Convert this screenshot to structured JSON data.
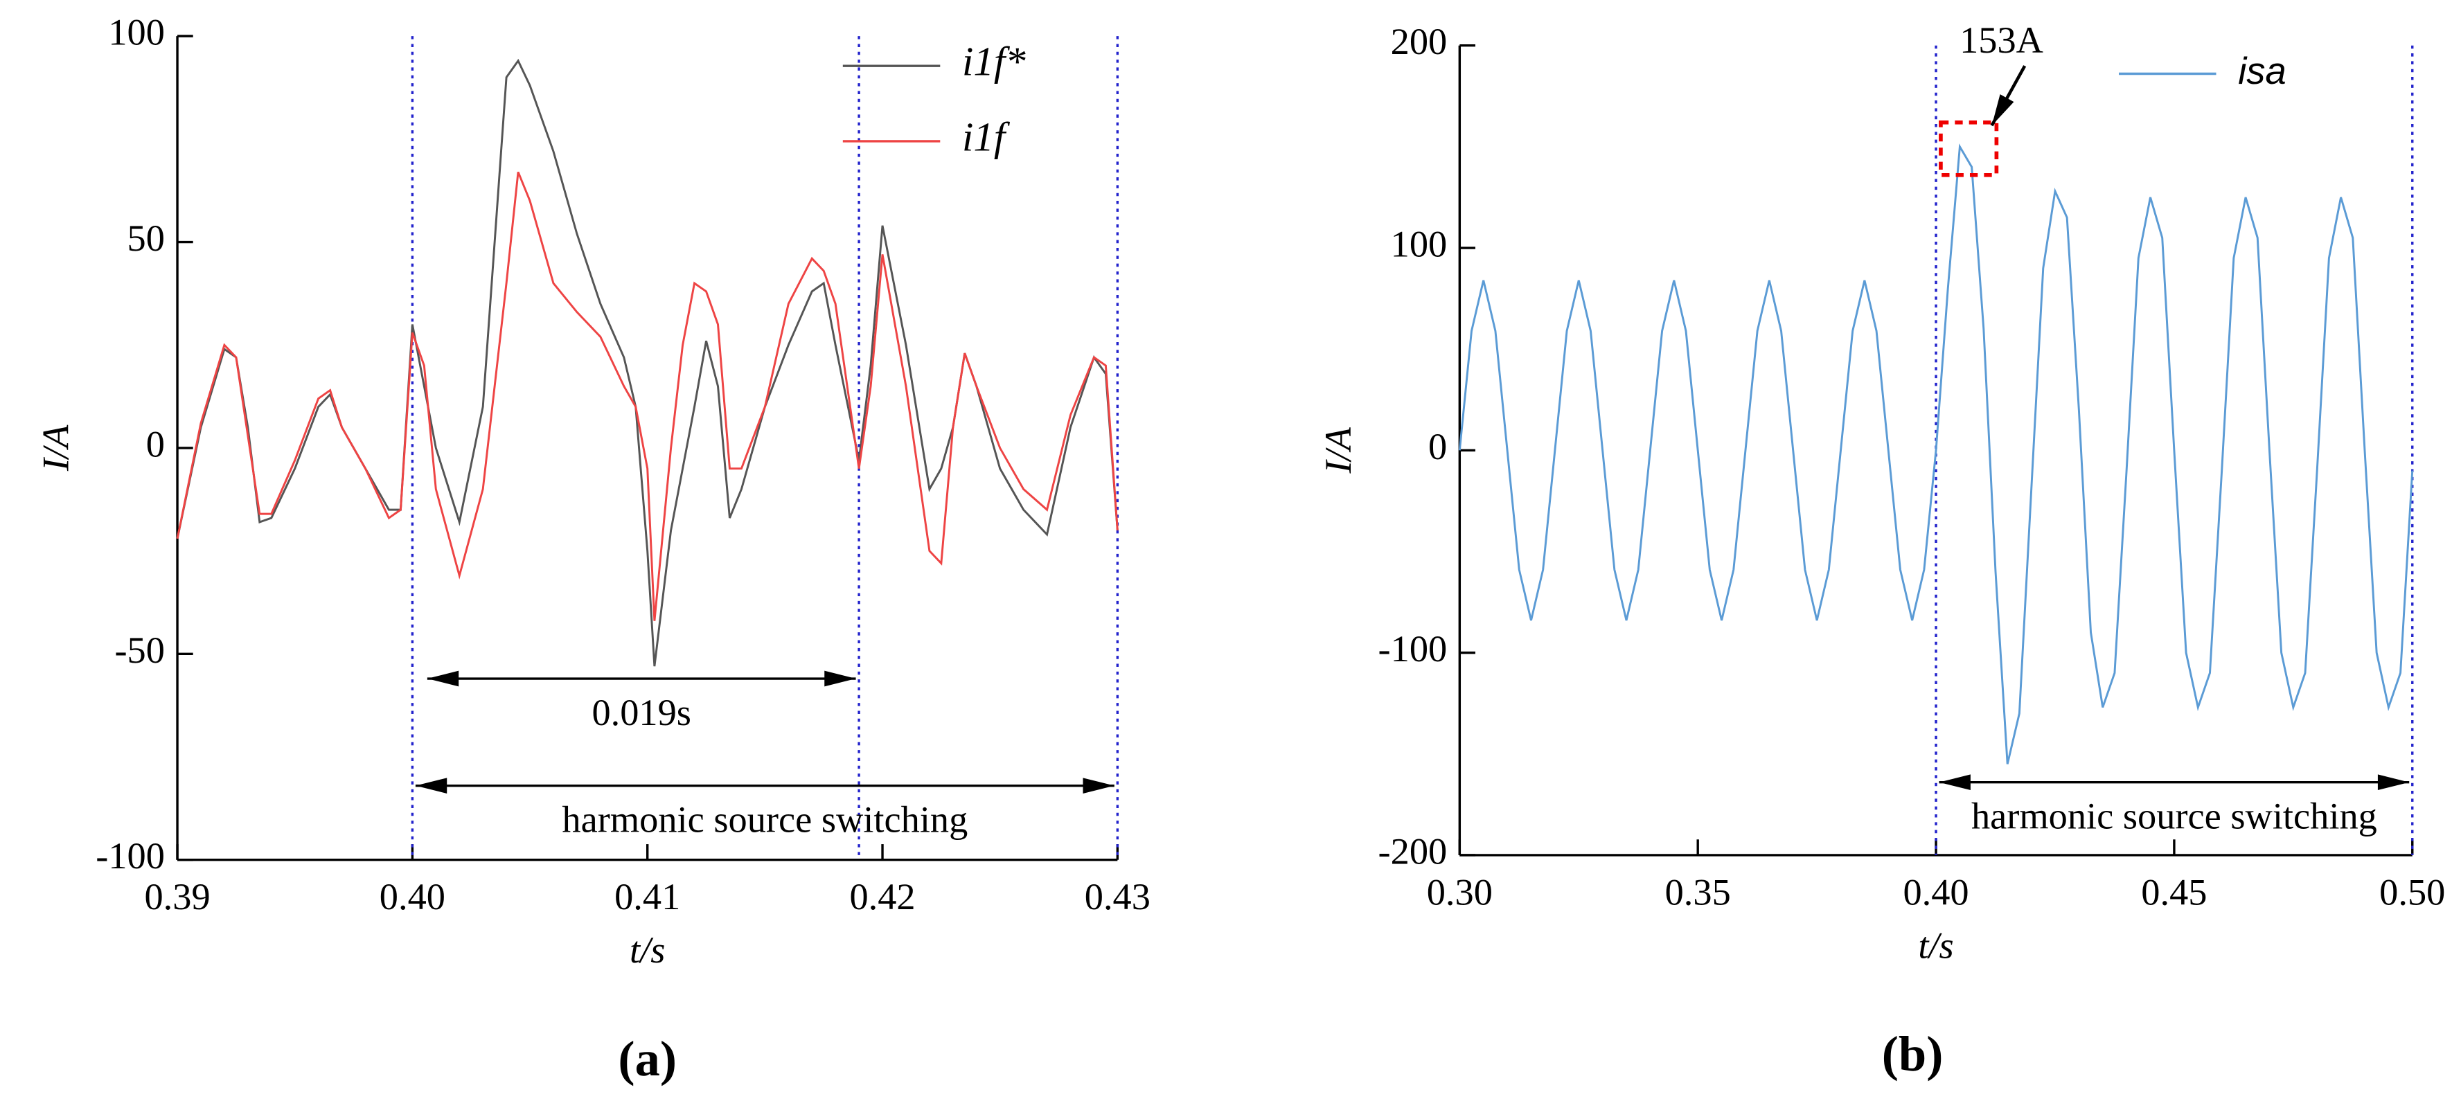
{
  "chart_data": [
    {
      "type": "line",
      "panel": "(a)",
      "x_label": "t/s",
      "y_label": "I/A",
      "xlim": [
        0.39,
        0.43
      ],
      "ylim": [
        -100,
        100
      ],
      "xticks": [
        0.39,
        {
          "value": 0.4,
          "label": "0.40"
        },
        0.41,
        0.42,
        0.43
      ],
      "yticks": [
        -100,
        -50,
        0,
        50,
        100
      ],
      "x": [
        0.39,
        0.391,
        0.392,
        0.3925,
        0.393,
        0.3935,
        0.394,
        0.395,
        0.396,
        0.3965,
        0.397,
        0.398,
        0.399,
        0.3995,
        0.4,
        0.4005,
        0.401,
        0.402,
        0.403,
        0.4035,
        0.404,
        0.4045,
        0.405,
        0.406,
        0.407,
        0.408,
        0.409,
        0.4095,
        0.41,
        0.4103,
        0.411,
        0.4115,
        0.412,
        0.4125,
        0.413,
        0.4135,
        0.414,
        0.415,
        0.416,
        0.417,
        0.4175,
        0.418,
        0.419,
        0.4195,
        0.42,
        0.421,
        0.422,
        0.4225,
        0.423,
        0.4235,
        0.424,
        0.425,
        0.426,
        0.427,
        0.428,
        0.429,
        0.4295,
        0.43
      ],
      "series": [
        {
          "name": "i1f*",
          "color": "#555555",
          "values": [
            -22,
            5,
            24,
            22,
            5,
            -18,
            -17,
            -5,
            10,
            13,
            5,
            -5,
            -15,
            -15,
            30,
            15,
            0,
            -18,
            10,
            50,
            90,
            94,
            88,
            72,
            52,
            35,
            22,
            10,
            -25,
            -53,
            -20,
            -5,
            10,
            26,
            15,
            -17,
            -10,
            10,
            25,
            38,
            40,
            25,
            -3,
            20,
            54,
            25,
            -10,
            -5,
            5,
            23,
            15,
            -5,
            -15,
            -21,
            5,
            22,
            18,
            -20
          ]
        },
        {
          "name": "i1f",
          "color": "#ee4444",
          "values": [
            -22,
            6,
            25,
            22,
            3,
            -16,
            -16,
            -3,
            12,
            14,
            5,
            -5,
            -17,
            -15,
            28,
            20,
            -10,
            -31,
            -10,
            15,
            40,
            67,
            60,
            40,
            33,
            27,
            15,
            10,
            -5,
            -42,
            0,
            25,
            40,
            38,
            30,
            -5,
            -5,
            10,
            35,
            46,
            43,
            35,
            -5,
            15,
            47,
            15,
            -25,
            -28,
            5,
            23,
            15,
            0,
            -10,
            -15,
            8,
            22,
            20,
            -20
          ]
        }
      ],
      "vlines": [
        0.4,
        0.419,
        0.43
      ],
      "arrows": [
        {
          "label": "0.019s",
          "x": [
            0.4005,
            0.419
          ],
          "y": -56
        },
        {
          "label": "harmonic source switching",
          "x": [
            0.4,
            0.43
          ],
          "y": -82
        }
      ]
    },
    {
      "type": "line",
      "panel": "(b)",
      "x_label": "t/s",
      "y_label": "I/A",
      "xlim": [
        0.3,
        0.5
      ],
      "ylim": [
        -200,
        200
      ],
      "xticks": [
        {
          "value": 0.3,
          "label": "0.30"
        },
        0.35,
        {
          "value": 0.4,
          "label": "0.40"
        },
        0.45,
        {
          "value": 0.5,
          "label": "0.50"
        }
      ],
      "yticks": [
        -200,
        -100,
        0,
        100,
        200
      ],
      "x": [
        0.3,
        0.3025,
        0.305,
        0.3075,
        0.31,
        0.3125,
        0.315,
        0.3175,
        0.32,
        0.3225,
        0.325,
        0.3275,
        0.33,
        0.3325,
        0.335,
        0.3375,
        0.34,
        0.3425,
        0.345,
        0.3475,
        0.35,
        0.3525,
        0.355,
        0.3575,
        0.36,
        0.3625,
        0.365,
        0.3675,
        0.37,
        0.3725,
        0.375,
        0.3775,
        0.38,
        0.3825,
        0.385,
        0.3875,
        0.39,
        0.3925,
        0.395,
        0.3975,
        0.4,
        0.4025,
        0.405,
        0.4075,
        0.41,
        0.4125,
        0.415,
        0.4175,
        0.42,
        0.4225,
        0.425,
        0.4275,
        0.43,
        0.4325,
        0.435,
        0.4375,
        0.44,
        0.4425,
        0.445,
        0.4475,
        0.45,
        0.4525,
        0.455,
        0.4575,
        0.46,
        0.4625,
        0.465,
        0.4675,
        0.47,
        0.4725,
        0.475,
        0.4775,
        0.48,
        0.4825,
        0.485,
        0.4875,
        0.49,
        0.4925,
        0.495,
        0.4975,
        0.5
      ],
      "series": [
        {
          "name": "isa",
          "color": "#5b9bd5",
          "values": [
            0,
            59,
            84,
            59,
            0,
            -59,
            -84,
            -59,
            0,
            59,
            84,
            59,
            0,
            -59,
            -84,
            -59,
            0,
            59,
            84,
            59,
            0,
            -59,
            -84,
            -59,
            0,
            59,
            84,
            59,
            0,
            -59,
            -84,
            -59,
            0,
            59,
            84,
            59,
            0,
            -59,
            -84,
            -59,
            0,
            80,
            150,
            140,
            60,
            -60,
            -155,
            -130,
            -20,
            90,
            128,
            115,
            20,
            -90,
            -127,
            -110,
            -10,
            95,
            125,
            105,
            0,
            -100,
            -127,
            -110,
            -10,
            95,
            125,
            105,
            0,
            -100,
            -127,
            -110,
            -10,
            95,
            125,
            105,
            0,
            -100,
            -127,
            -110,
            -10
          ]
        }
      ],
      "vlines": [
        0.4,
        0.5
      ],
      "arrows": [
        {
          "label": "harmonic source switching",
          "x": [
            0.4,
            0.5
          ],
          "y": -164
        }
      ],
      "callout": {
        "label": "153A",
        "box_x": [
          0.401,
          0.4127
        ],
        "box_y": [
          136,
          162
        ]
      }
    }
  ]
}
